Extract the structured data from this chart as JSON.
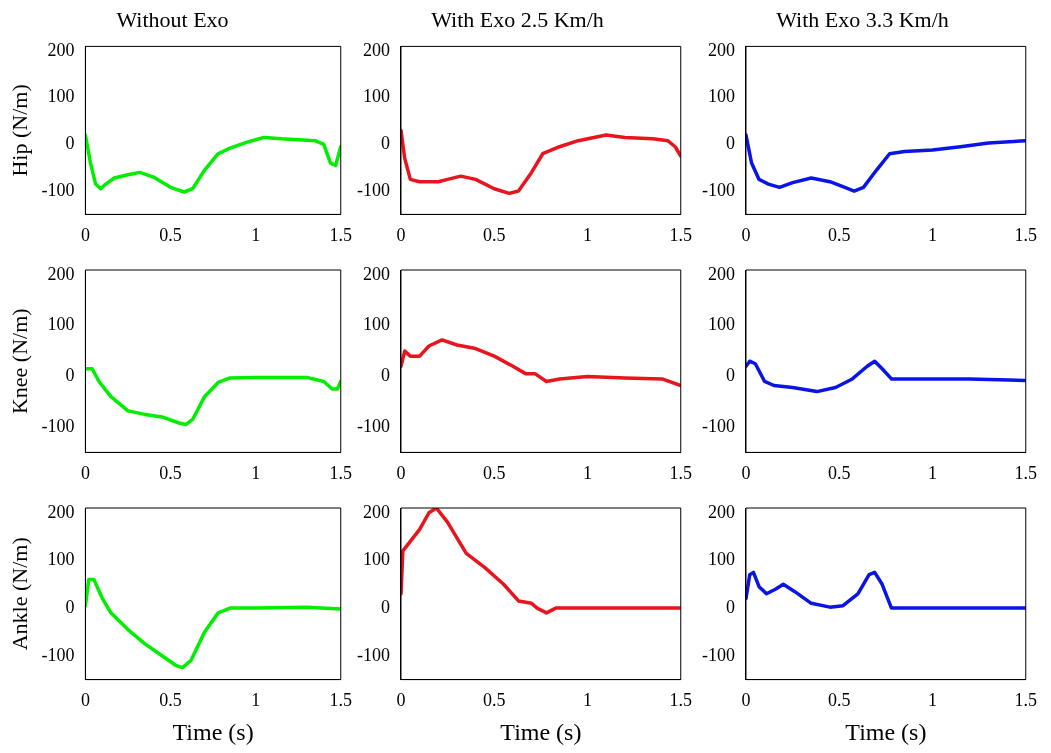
{
  "chart_data": [
    {
      "type": "line",
      "title": "Without Exo",
      "ylabel": "Hip (N/m)",
      "xlim": [
        0,
        1.5
      ],
      "ylim": [
        -150,
        210
      ],
      "xticks": [
        0,
        0.5,
        1,
        1.5
      ],
      "yticks": [
        -100,
        0,
        100,
        200
      ],
      "grid": false,
      "legend": false,
      "series": [
        {
          "color": "#00ee00",
          "x": [
            0,
            0.03,
            0.06,
            0.09,
            0.12,
            0.17,
            0.25,
            0.32,
            0.4,
            0.5,
            0.58,
            0.63,
            0.7,
            0.78,
            0.85,
            0.95,
            1.05,
            1.15,
            1.25,
            1.35,
            1.4,
            1.44,
            1.47,
            1.5
          ],
          "values": [
            20,
            -40,
            -85,
            -95,
            -85,
            -72,
            -65,
            -60,
            -70,
            -92,
            -102,
            -95,
            -55,
            -20,
            -8,
            5,
            15,
            12,
            10,
            8,
            0,
            -40,
            -45,
            -5
          ]
        }
      ]
    },
    {
      "type": "line",
      "title": "With Exo 2.5 Km/h",
      "xlim": [
        0,
        1.5
      ],
      "ylim": [
        -150,
        210
      ],
      "xticks": [
        0,
        0.5,
        1,
        1.5
      ],
      "yticks": [
        -100,
        0,
        100,
        200
      ],
      "grid": false,
      "legend": false,
      "series": [
        {
          "color": "#e8141e",
          "x": [
            0,
            0.02,
            0.05,
            0.1,
            0.2,
            0.25,
            0.32,
            0.4,
            0.5,
            0.58,
            0.63,
            0.7,
            0.76,
            0.85,
            0.95,
            1.1,
            1.2,
            1.35,
            1.43,
            1.47,
            1.5
          ],
          "values": [
            30,
            -30,
            -75,
            -80,
            -80,
            -75,
            -68,
            -75,
            -95,
            -105,
            -100,
            -60,
            -20,
            -5,
            8,
            20,
            15,
            12,
            8,
            -5,
            -25
          ]
        }
      ]
    },
    {
      "type": "line",
      "title": "With Exo 3.3 Km/h",
      "xlim": [
        0,
        1.5
      ],
      "ylim": [
        -150,
        210
      ],
      "xticks": [
        0,
        0.5,
        1,
        1.5
      ],
      "yticks": [
        -100,
        0,
        100,
        200
      ],
      "grid": false,
      "legend": false,
      "series": [
        {
          "color": "#0a14e6",
          "x": [
            0,
            0.03,
            0.07,
            0.12,
            0.18,
            0.25,
            0.35,
            0.45,
            0.53,
            0.58,
            0.63,
            0.7,
            0.77,
            0.85,
            1,
            1.15,
            1.3,
            1.5
          ],
          "values": [
            20,
            -40,
            -75,
            -85,
            -92,
            -82,
            -72,
            -80,
            -92,
            -100,
            -92,
            -55,
            -20,
            -15,
            -12,
            -5,
            3,
            8
          ]
        }
      ]
    },
    {
      "type": "line",
      "ylabel": "Knee (N/m)",
      "xlim": [
        0,
        1.5
      ],
      "ylim": [
        -150,
        210
      ],
      "xticks": [
        0,
        0.5,
        1,
        1.5
      ],
      "yticks": [
        -100,
        0,
        100,
        200
      ],
      "grid": false,
      "legend": false,
      "series": [
        {
          "color": "#00ee00",
          "x": [
            0,
            0.04,
            0.08,
            0.15,
            0.25,
            0.35,
            0.45,
            0.55,
            0.59,
            0.63,
            0.7,
            0.78,
            0.85,
            1,
            1.3,
            1.4,
            1.45,
            1.48,
            1.5
          ],
          "values": [
            15,
            15,
            -10,
            -40,
            -68,
            -75,
            -80,
            -92,
            -95,
            -85,
            -40,
            -12,
            -3,
            -2,
            -2,
            -10,
            -25,
            -25,
            -10
          ]
        }
      ]
    },
    {
      "type": "line",
      "xlim": [
        0,
        1.5
      ],
      "ylim": [
        -150,
        210
      ],
      "xticks": [
        0,
        0.5,
        1,
        1.5
      ],
      "yticks": [
        -100,
        0,
        100,
        200
      ],
      "grid": false,
      "legend": false,
      "series": [
        {
          "color": "#e8141e",
          "x": [
            0,
            0.02,
            0.05,
            0.1,
            0.15,
            0.22,
            0.3,
            0.4,
            0.5,
            0.6,
            0.67,
            0.72,
            0.78,
            0.85,
            1,
            1.2,
            1.4,
            1.5
          ],
          "values": [
            20,
            50,
            40,
            40,
            60,
            72,
            62,
            55,
            40,
            20,
            5,
            5,
            -10,
            -5,
            0,
            -3,
            -5,
            -18
          ]
        }
      ]
    },
    {
      "type": "line",
      "xlim": [
        0,
        1.5
      ],
      "ylim": [
        -150,
        210
      ],
      "xticks": [
        0,
        0.5,
        1,
        1.5
      ],
      "yticks": [
        -100,
        0,
        100,
        200
      ],
      "grid": false,
      "legend": false,
      "series": [
        {
          "color": "#0a14e6",
          "x": [
            0,
            0.02,
            0.05,
            0.1,
            0.15,
            0.25,
            0.38,
            0.48,
            0.57,
            0.65,
            0.69,
            0.73,
            0.78,
            0.85,
            1.2,
            1.5
          ],
          "values": [
            20,
            30,
            25,
            -10,
            -18,
            -22,
            -30,
            -22,
            -5,
            20,
            30,
            15,
            -5,
            -5,
            -5,
            -8
          ]
        }
      ]
    },
    {
      "type": "line",
      "ylabel": "Ankle (N/m)",
      "xlabel": "Time (s)",
      "xlim": [
        0,
        1.5
      ],
      "ylim": [
        -150,
        210
      ],
      "xticks": [
        0,
        0.5,
        1,
        1.5
      ],
      "yticks": [
        -100,
        0,
        100,
        200
      ],
      "grid": false,
      "legend": false,
      "series": [
        {
          "color": "#00ee00",
          "x": [
            0,
            0.02,
            0.05,
            0.1,
            0.15,
            0.25,
            0.35,
            0.45,
            0.53,
            0.57,
            0.62,
            0.7,
            0.78,
            0.85,
            1,
            1.3,
            1.5
          ],
          "values": [
            5,
            60,
            60,
            20,
            -10,
            -45,
            -75,
            -100,
            -120,
            -125,
            -110,
            -50,
            -10,
            0,
            0,
            2,
            -2
          ]
        }
      ]
    },
    {
      "type": "line",
      "xlabel": "Time (s)",
      "xlim": [
        0,
        1.5
      ],
      "ylim": [
        -150,
        210
      ],
      "xticks": [
        0,
        0.5,
        1,
        1.5
      ],
      "yticks": [
        -100,
        0,
        100,
        200
      ],
      "grid": false,
      "legend": false,
      "series": [
        {
          "color": "#e8141e",
          "x": [
            0,
            0.01,
            0.05,
            0.1,
            0.15,
            0.19,
            0.25,
            0.35,
            0.45,
            0.55,
            0.63,
            0.7,
            0.73,
            0.78,
            0.83,
            1,
            1.5
          ],
          "values": [
            30,
            120,
            140,
            165,
            200,
            210,
            180,
            115,
            85,
            50,
            15,
            10,
            0,
            -10,
            0,
            0,
            0
          ]
        }
      ]
    },
    {
      "type": "line",
      "xlabel": "Time (s)",
      "xlim": [
        0,
        1.5
      ],
      "ylim": [
        -150,
        210
      ],
      "xticks": [
        0,
        0.5,
        1,
        1.5
      ],
      "yticks": [
        -100,
        0,
        100,
        200
      ],
      "grid": false,
      "legend": false,
      "series": [
        {
          "color": "#0a14e6",
          "x": [
            0,
            0.02,
            0.04,
            0.07,
            0.11,
            0.16,
            0.2,
            0.26,
            0.35,
            0.45,
            0.52,
            0.6,
            0.66,
            0.69,
            0.73,
            0.78,
            0.82,
            1.5
          ],
          "values": [
            20,
            70,
            75,
            45,
            30,
            40,
            50,
            35,
            10,
            2,
            5,
            30,
            70,
            75,
            50,
            0,
            0,
            0
          ]
        }
      ]
    }
  ]
}
